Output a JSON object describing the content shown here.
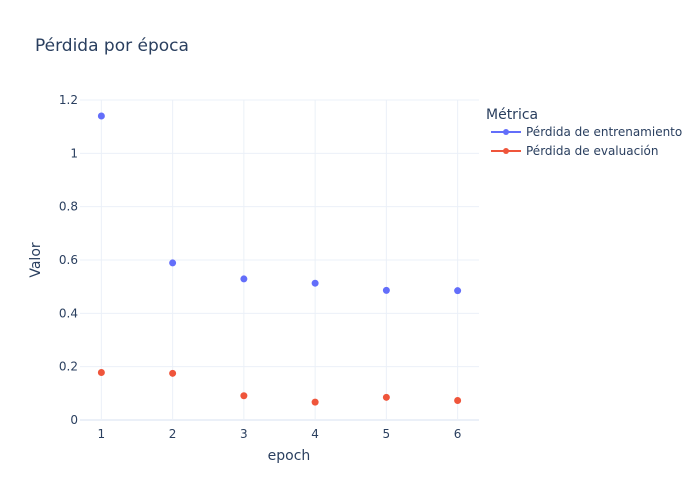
{
  "chart_data": {
    "type": "scatter",
    "title": "Pérdida por época",
    "xlabel": "epoch",
    "ylabel": "Valor",
    "x": [
      1,
      2,
      3,
      4,
      5,
      6
    ],
    "xlim": [
      0.7,
      6.3
    ],
    "ylim": [
      0,
      1.2
    ],
    "xticks": [
      1,
      2,
      3,
      4,
      5,
      6
    ],
    "yticks": [
      0,
      0.2,
      0.4,
      0.6,
      0.8,
      1,
      1.2
    ],
    "yticklabels": [
      "0",
      "0.2",
      "0.4",
      "0.6",
      "0.8",
      "1",
      "1.2"
    ],
    "grid": true,
    "legend": {
      "title": "Métrica",
      "placement": "right"
    },
    "series": [
      {
        "name": "Pérdida de entrenamiento",
        "color": "#636efa",
        "values": [
          1.14,
          0.589,
          0.529,
          0.513,
          0.486,
          0.485
        ]
      },
      {
        "name": "Pérdida de evaluación",
        "color": "#ef553b",
        "values": [
          0.178,
          0.175,
          0.091,
          0.067,
          0.085,
          0.073
        ]
      }
    ]
  }
}
